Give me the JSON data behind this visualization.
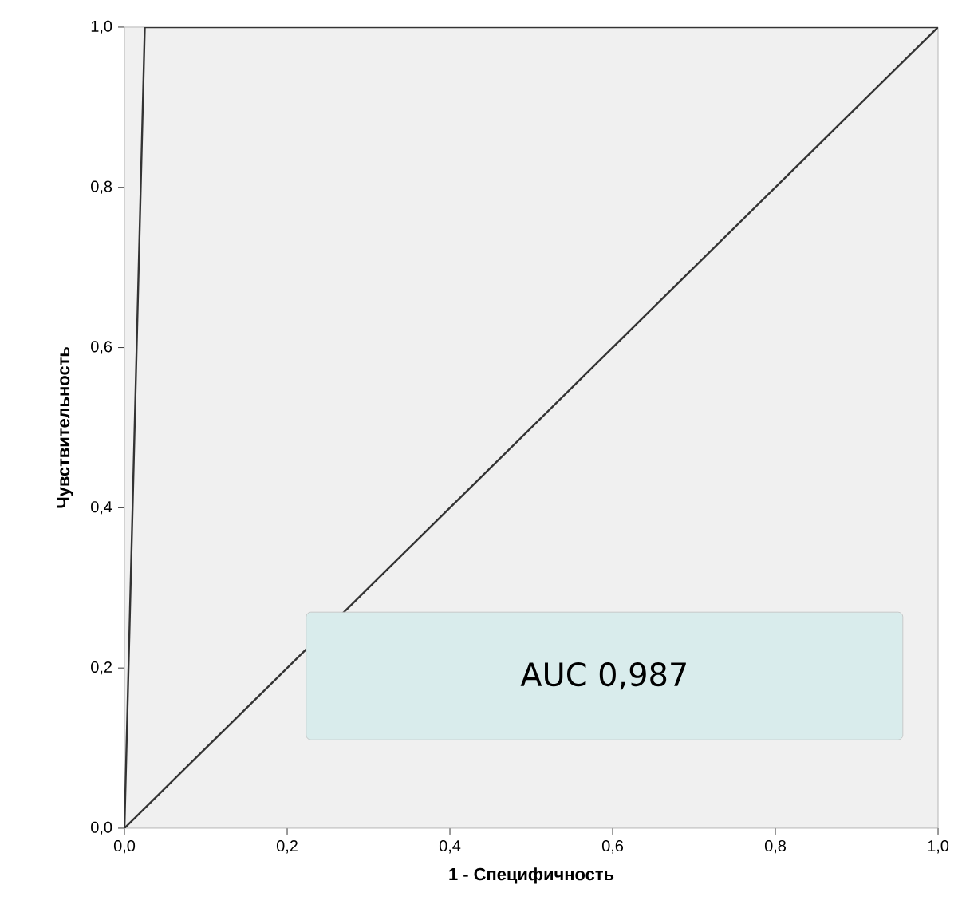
{
  "chart_data": {
    "type": "line",
    "xlabel": "1 - Специфичность",
    "ylabel": "Чувствительность",
    "annotations": [
      "AUC 0,987"
    ],
    "xlim": [
      0,
      1
    ],
    "ylim": [
      0,
      1
    ],
    "xticks": [
      {
        "value": 0,
        "label": "0,0"
      },
      {
        "value": 0.2,
        "label": "0,2"
      },
      {
        "value": 0.4,
        "label": "0,4"
      },
      {
        "value": 0.6,
        "label": "0,6"
      },
      {
        "value": 0.8,
        "label": "0,8"
      },
      {
        "value": 1,
        "label": "1,0"
      }
    ],
    "yticks": [
      {
        "value": 0,
        "label": "0,0"
      },
      {
        "value": 0.2,
        "label": "0,2"
      },
      {
        "value": 0.4,
        "label": "0,4"
      },
      {
        "value": 0.6,
        "label": "0,6"
      },
      {
        "value": 0.8,
        "label": "0,8"
      },
      {
        "value": 1,
        "label": "1,0"
      }
    ],
    "series": [
      {
        "color": "#333333",
        "x": [
          0,
          0.025,
          1
        ],
        "values": [
          0,
          1,
          1
        ]
      },
      {
        "color": "#333333",
        "x": [
          0,
          1
        ],
        "values": [
          0,
          1
        ]
      }
    ],
    "grid": false,
    "marker": "none",
    "line_style": "solid"
  }
}
